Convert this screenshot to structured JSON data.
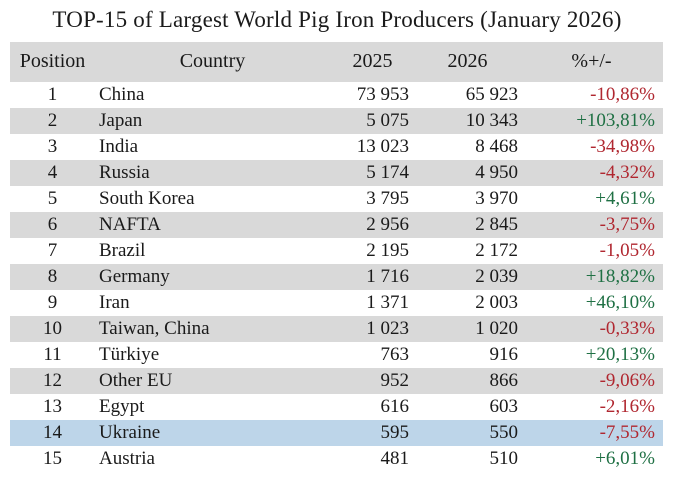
{
  "title": "TOP-15 of Largest World Pig Iron Producers (January 2026)",
  "columns": [
    "Position",
    "Country",
    "2025",
    "2026",
    "%+/-"
  ],
  "rows": [
    {
      "position": "1",
      "country": "China",
      "y2025": "73 953",
      "y2026": "65 923",
      "change": "-10,86%",
      "trend": "down",
      "highlighted": false
    },
    {
      "position": "2",
      "country": "Japan",
      "y2025": "5 075",
      "y2026": "10 343",
      "change": "+103,81%",
      "trend": "up",
      "highlighted": false
    },
    {
      "position": "3",
      "country": "India",
      "y2025": "13 023",
      "y2026": "8 468",
      "change": "-34,98%",
      "trend": "down",
      "highlighted": false
    },
    {
      "position": "4",
      "country": "Russia",
      "y2025": "5 174",
      "y2026": "4 950",
      "change": "-4,32%",
      "trend": "down",
      "highlighted": false
    },
    {
      "position": "5",
      "country": "South Korea",
      "y2025": "3 795",
      "y2026": "3 970",
      "change": "+4,61%",
      "trend": "up",
      "highlighted": false
    },
    {
      "position": "6",
      "country": "NAFTA",
      "y2025": "2 956",
      "y2026": "2 845",
      "change": "-3,75%",
      "trend": "down",
      "highlighted": false
    },
    {
      "position": "7",
      "country": "Brazil",
      "y2025": "2 195",
      "y2026": "2 172",
      "change": "-1,05%",
      "trend": "down",
      "highlighted": false
    },
    {
      "position": "8",
      "country": "Germany",
      "y2025": "1 716",
      "y2026": "2 039",
      "change": "+18,82%",
      "trend": "up",
      "highlighted": false
    },
    {
      "position": "9",
      "country": "Iran",
      "y2025": "1 371",
      "y2026": "2 003",
      "change": "+46,10%",
      "trend": "up",
      "highlighted": false
    },
    {
      "position": "10",
      "country": "Taiwan, China",
      "y2025": "1 023",
      "y2026": "1 020",
      "change": "-0,33%",
      "trend": "down",
      "highlighted": false
    },
    {
      "position": "11",
      "country": "Türkiye",
      "y2025": "763",
      "y2026": "916",
      "change": "+20,13%",
      "trend": "up",
      "highlighted": false
    },
    {
      "position": "12",
      "country": "Other EU",
      "y2025": "952",
      "y2026": "866",
      "change": "-9,06%",
      "trend": "down",
      "highlighted": false
    },
    {
      "position": "13",
      "country": "Egypt",
      "y2025": "616",
      "y2026": "603",
      "change": "-2,16%",
      "trend": "down",
      "highlighted": false
    },
    {
      "position": "14",
      "country": "Ukraine",
      "y2025": "595",
      "y2026": "550",
      "change": "-7,55%",
      "trend": "down",
      "highlighted": true
    },
    {
      "position": "15",
      "country": "Austria",
      "y2025": "481",
      "y2026": "510",
      "change": "+6,01%",
      "trend": "up",
      "highlighted": false
    }
  ],
  "colors": {
    "header_bg": "#d9d9d9",
    "stripe_bg": "#d9d9d9",
    "highlight_bg": "#bdd5e9",
    "negative": "#b02730",
    "positive": "#1f7044",
    "text": "#1a1a1a"
  },
  "chart_data": {
    "type": "table",
    "title": "TOP-15 of Largest World Pig Iron Producers (January 2026)",
    "columns": [
      "Position",
      "Country",
      "2025",
      "2026",
      "%+/-"
    ],
    "categories": [
      "China",
      "Japan",
      "India",
      "Russia",
      "South Korea",
      "NAFTA",
      "Brazil",
      "Germany",
      "Iran",
      "Taiwan, China",
      "Türkiye",
      "Other EU",
      "Egypt",
      "Ukraine",
      "Austria"
    ],
    "series": [
      {
        "name": "2025",
        "values": [
          73953,
          5075,
          13023,
          5174,
          3795,
          2956,
          2195,
          1716,
          1371,
          1023,
          763,
          952,
          616,
          595,
          481
        ]
      },
      {
        "name": "2026",
        "values": [
          65923,
          10343,
          8468,
          4950,
          3970,
          2845,
          2172,
          2039,
          2003,
          1020,
          916,
          866,
          603,
          550,
          510
        ]
      },
      {
        "name": "%+/-",
        "values": [
          -10.86,
          103.81,
          -34.98,
          -4.32,
          4.61,
          -3.75,
          -1.05,
          18.82,
          46.1,
          -0.33,
          20.13,
          -9.06,
          -2.16,
          -7.55,
          6.01
        ]
      }
    ],
    "highlighted_row": "Ukraine",
    "layout": {
      "zebra_striping": true,
      "stripe_rows": "even positions",
      "grid": false,
      "legend": "none"
    }
  }
}
